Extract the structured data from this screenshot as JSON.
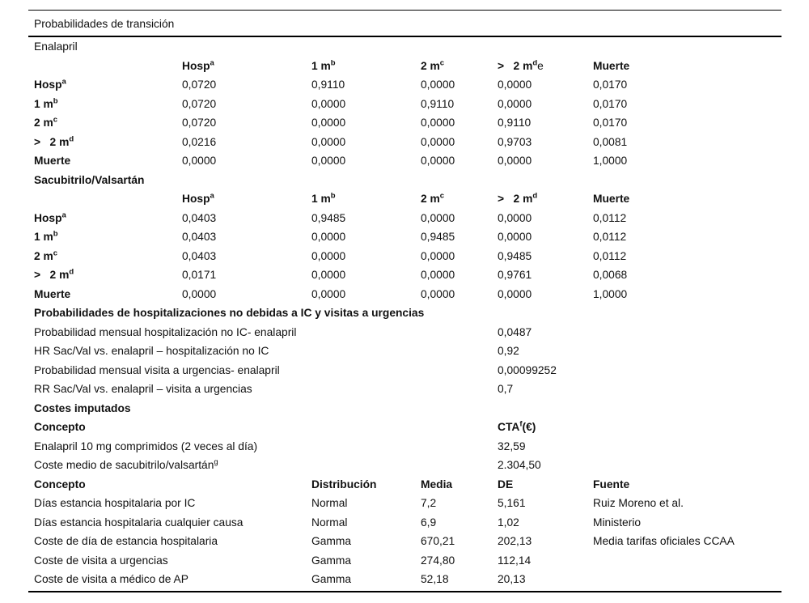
{
  "page": {
    "background": "#ffffff",
    "text_color": "#111111",
    "rule_color": "#000000"
  },
  "table": {
    "title": "Probabilidades de transición",
    "rows": [
      {
        "kind": "section",
        "name": "section-enalapril",
        "cells": [
          "Enalapril",
          "",
          "",
          "",
          "",
          ""
        ]
      },
      {
        "kind": "header",
        "name": "enalapril-matrix-header",
        "cells": [
          "",
          {
            "t": "Hosp^{a}",
            "b": true
          },
          {
            "t": "1 m^{b}",
            "b": true
          },
          {
            "t": "2 m^{c}",
            "b": true
          },
          {
            "t": ">   2 m^{d}~{e}",
            "b": true
          },
          {
            "t": "Muerte",
            "b": true
          }
        ]
      },
      {
        "kind": "data",
        "name": "enalapril-row-hosp",
        "cells": [
          {
            "t": "Hosp^{a}",
            "b": true
          },
          "0,0720",
          "0,9110",
          "0,0000",
          "0,0000",
          "0,0170"
        ]
      },
      {
        "kind": "data",
        "name": "enalapril-row-1m",
        "cells": [
          {
            "t": "1 m^{b}",
            "b": true
          },
          "0,0720",
          "0,0000",
          "0,9110",
          "0,0000",
          "0,0170"
        ]
      },
      {
        "kind": "data",
        "name": "enalapril-row-2m",
        "cells": [
          {
            "t": "2 m^{c}",
            "b": true
          },
          "0,0720",
          "0,0000",
          "0,0000",
          "0,9110",
          "0,0170"
        ]
      },
      {
        "kind": "data",
        "name": "enalapril-row-gt2m",
        "cells": [
          {
            "t": ">   2 m^{d}",
            "b": true
          },
          "0,0216",
          "0,0000",
          "0,0000",
          "0,9703",
          "0,0081"
        ]
      },
      {
        "kind": "data",
        "name": "enalapril-row-muerte",
        "cells": [
          {
            "t": "Muerte",
            "b": true
          },
          "0,0000",
          "0,0000",
          "0,0000",
          "0,0000",
          "1,0000"
        ]
      },
      {
        "kind": "section",
        "name": "section-sacubitrilo-valsartan",
        "cells": [
          {
            "t": "Sacubitrilo/Valsartán",
            "b": true
          },
          "",
          "",
          "",
          "",
          ""
        ]
      },
      {
        "kind": "header",
        "name": "sacubitrilo-matrix-header",
        "cells": [
          "",
          {
            "t": "Hosp^{a}",
            "b": true
          },
          {
            "t": "1 m^{b}",
            "b": true
          },
          {
            "t": "2 m^{c}",
            "b": true
          },
          {
            "t": ">   2 m^{d}",
            "b": true
          },
          {
            "t": "Muerte",
            "b": true
          }
        ]
      },
      {
        "kind": "data",
        "name": "sacubitrilo-row-hosp",
        "cells": [
          {
            "t": "Hosp^{a}",
            "b": true
          },
          "0,0403",
          "0,9485",
          "0,0000",
          "0,0000",
          "0,0112"
        ]
      },
      {
        "kind": "data",
        "name": "sacubitrilo-row-1m",
        "cells": [
          {
            "t": "1 m^{b}",
            "b": true
          },
          "0,0403",
          "0,0000",
          "0,9485",
          "0,0000",
          "0,0112"
        ]
      },
      {
        "kind": "data",
        "name": "sacubitrilo-row-2m",
        "cells": [
          {
            "t": "2 m^{c}",
            "b": true
          },
          "0,0403",
          "0,0000",
          "0,0000",
          "0,9485",
          "0,0112"
        ]
      },
      {
        "kind": "data",
        "name": "sacubitrilo-row-gt2m",
        "cells": [
          {
            "t": ">   2 m^{d}",
            "b": true
          },
          "0,0171",
          "0,0000",
          "0,0000",
          "0,9761",
          "0,0068"
        ]
      },
      {
        "kind": "data",
        "name": "sacubitrilo-row-muerte",
        "cells": [
          {
            "t": "Muerte",
            "b": true
          },
          "0,0000",
          "0,0000",
          "0,0000",
          "0,0000",
          "1,0000"
        ]
      },
      {
        "kind": "section",
        "name": "section-hospitalizaciones-urgencias",
        "cells": [
          {
            "t": "Probabilidades de hospitalizaciones no debidas a IC y visitas a urgencias",
            "b": true
          },
          "",
          "",
          "",
          "",
          ""
        ]
      },
      {
        "kind": "data",
        "name": "row-prob-hosp-no-ic-enalapril",
        "cells": [
          "Probabilidad mensual hospitalización no IC- enalapril",
          "",
          "",
          "",
          "0,0487",
          ""
        ]
      },
      {
        "kind": "data",
        "name": "row-hr-sacval-hosp-no-ic",
        "cells": [
          "HR Sac/Val vs. enalapril – hospitalización no IC",
          "",
          "",
          "",
          "0,92",
          ""
        ]
      },
      {
        "kind": "data",
        "name": "row-prob-visita-urgencias-enalapril",
        "cells": [
          "Probabilidad mensual visita a urgencias- enalapril",
          "",
          "",
          "",
          "0,00099252",
          ""
        ]
      },
      {
        "kind": "data",
        "name": "row-rr-sacval-visita-urgencias",
        "cells": [
          "RR Sac/Val vs. enalapril – visita a urgencias",
          "",
          "",
          "",
          "0,7",
          ""
        ]
      },
      {
        "kind": "section",
        "name": "section-costes-imputados",
        "cells": [
          {
            "t": "Costes imputados",
            "b": true
          },
          "",
          "",
          "",
          "",
          ""
        ]
      },
      {
        "kind": "header",
        "name": "costes-header",
        "cells": [
          {
            "t": "Concepto",
            "b": true
          },
          "",
          "",
          "",
          {
            "t": "CTA^{f}(€)",
            "b": true
          },
          ""
        ]
      },
      {
        "kind": "data",
        "name": "row-enalapril-10mg",
        "cells": [
          "Enalapril 10 mg comprimidos (2 veces al día)",
          "",
          "",
          "",
          "32,59",
          ""
        ]
      },
      {
        "kind": "data",
        "name": "row-coste-medio-sacubitrilo",
        "cells": [
          "Coste medio de sacubitrilo/valsartán^{g}",
          "",
          "",
          "",
          "2.304,50",
          ""
        ]
      },
      {
        "kind": "header",
        "name": "distribucion-header",
        "cells": [
          {
            "t": "Concepto",
            "b": true
          },
          "",
          {
            "t": "Distribución",
            "b": true
          },
          {
            "t": "Media",
            "b": true
          },
          {
            "t": "DE",
            "b": true
          },
          {
            "t": "Fuente",
            "b": true
          }
        ]
      },
      {
        "kind": "data",
        "name": "row-dias-estancia-ic",
        "cells": [
          "Días estancia hospitalaria por IC",
          "",
          "Normal",
          "7,2",
          "5,161",
          "Ruiz Moreno et al."
        ]
      },
      {
        "kind": "data",
        "name": "row-dias-estancia-cualquier-causa",
        "cells": [
          "Días estancia hospitalaria cualquier causa",
          "",
          "Normal",
          "6,9",
          "1,02",
          "Ministerio"
        ]
      },
      {
        "kind": "data",
        "name": "row-coste-dia-estancia",
        "cells": [
          "Coste de día de estancia hospitalaria",
          "",
          "Gamma",
          "670,21",
          "202,13",
          "Media tarifas oficiales CCAA"
        ]
      },
      {
        "kind": "data",
        "name": "row-coste-visita-urgencias",
        "cells": [
          "Coste de visita a urgencias",
          "",
          "Gamma",
          "274,80",
          "112,14",
          ""
        ]
      },
      {
        "kind": "data",
        "name": "row-coste-visita-medico-ap",
        "cells": [
          "Coste de visita a médico de AP",
          "",
          "Gamma",
          "52,18",
          "20,13",
          ""
        ]
      }
    ]
  }
}
